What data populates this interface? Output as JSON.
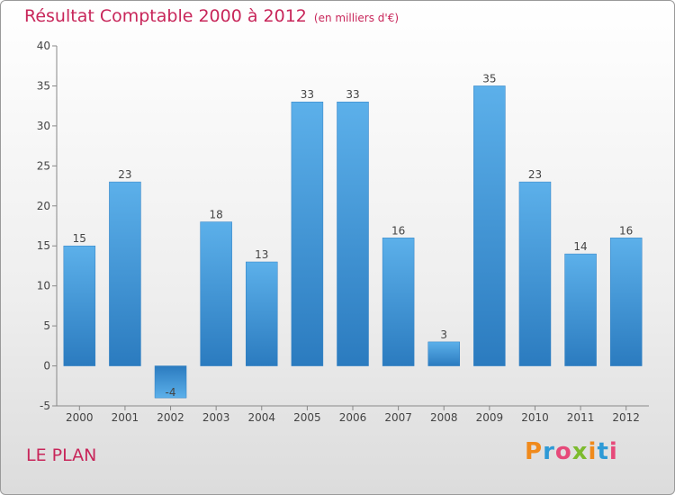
{
  "chart_data": {
    "type": "bar",
    "title": "Résultat Comptable 2000 à 2012",
    "subtitle": "(en milliers d'€)",
    "categories": [
      "2000",
      "2001",
      "2002",
      "2003",
      "2004",
      "2005",
      "2006",
      "2007",
      "2008",
      "2009",
      "2010",
      "2011",
      "2012"
    ],
    "values": [
      15,
      23,
      -4,
      18,
      13,
      33,
      33,
      16,
      3,
      35,
      23,
      14,
      16
    ],
    "ylim": [
      -5,
      40
    ],
    "yticks": [
      -5,
      0,
      5,
      10,
      15,
      20,
      25,
      30,
      35,
      40
    ],
    "xlabel": "",
    "ylabel": "",
    "grid": false,
    "bar_color": "#3a8fd4"
  },
  "footer": {
    "location": "LE PLAN",
    "brand": {
      "letters": [
        "P",
        "r",
        "o",
        "x",
        "i",
        "t",
        "i"
      ],
      "colors": [
        "#f08a1c",
        "#2e9ad6",
        "#e64a7a",
        "#7dbb2e",
        "#f08a1c",
        "#2e9ad6",
        "#e64a7a"
      ]
    }
  }
}
